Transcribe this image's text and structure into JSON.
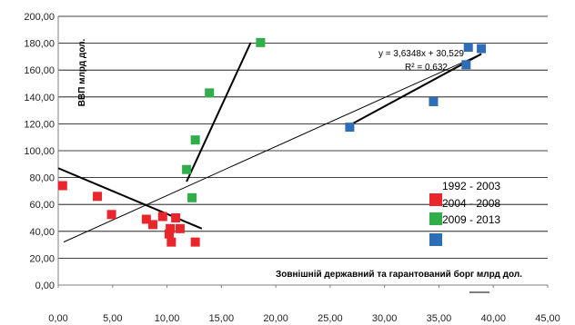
{
  "chart_data": {
    "type": "scatter",
    "title": "",
    "xlabel": "Зовнішній державний та гарантований борг млрд дол.",
    "ylabel": "ВВП млрд дол.",
    "xlim": [
      0,
      45
    ],
    "ylim": [
      0,
      200
    ],
    "x_ticks": [
      "0,00",
      "5,00",
      "10,00",
      "15,00",
      "20,00",
      "25,00",
      "30,00",
      "35,00",
      "40,00",
      "45,00"
    ],
    "y_ticks": [
      "0,00",
      "20,00",
      "40,00",
      "60,00",
      "80,00",
      "100,00",
      "120,00",
      "140,00",
      "160,00",
      "180,00",
      "200,00"
    ],
    "grid": "horizontal",
    "legend_position": "right",
    "series": [
      {
        "name": "1992 - 2003",
        "color": "#e8262b",
        "points": [
          [
            0.4,
            74
          ],
          [
            3.6,
            66
          ],
          [
            4.9,
            52.5
          ],
          [
            8.1,
            49
          ],
          [
            8.7,
            45
          ],
          [
            9.6,
            51
          ],
          [
            10.2,
            38
          ],
          [
            10.3,
            42
          ],
          [
            10.4,
            32
          ],
          [
            10.8,
            50
          ],
          [
            11.2,
            42
          ],
          [
            12.6,
            32
          ]
        ]
      },
      {
        "name": "2004 - 2008",
        "color": "#2fae49",
        "points": [
          [
            11.8,
            86
          ],
          [
            12.3,
            65
          ],
          [
            12.6,
            108
          ],
          [
            13.9,
            143
          ],
          [
            18.6,
            180.5
          ]
        ]
      },
      {
        "name": "2009 - 2013",
        "color": "#2e6eb6",
        "points": [
          [
            26.8,
            117.5
          ],
          [
            34.5,
            136.5
          ],
          [
            37.5,
            164
          ],
          [
            37.7,
            177
          ],
          [
            38.9,
            176
          ]
        ]
      }
    ],
    "legend_labels": [
      "1992 - 2003",
      "2004 - 2008",
      "2009 - 2013"
    ],
    "trendlines": [
      {
        "name": "overall-trendline",
        "from": [
          0.5,
          32
        ],
        "to": [
          38.9,
          172
        ],
        "width": 1
      },
      {
        "name": "trendline-1992-2003",
        "from": [
          0,
          87
        ],
        "to": [
          13.2,
          42
        ],
        "width": 2
      },
      {
        "name": "trendline-2004-2008",
        "from": [
          11.8,
          77
        ],
        "to": [
          17.7,
          180.5
        ],
        "width": 2
      },
      {
        "name": "trendline-2009-2013",
        "from": [
          26.8,
          119
        ],
        "to": [
          38.9,
          172
        ],
        "width": 2
      }
    ],
    "equation": "y = 3,6348x + 30,529",
    "r_squared": "R² = 0,632"
  }
}
